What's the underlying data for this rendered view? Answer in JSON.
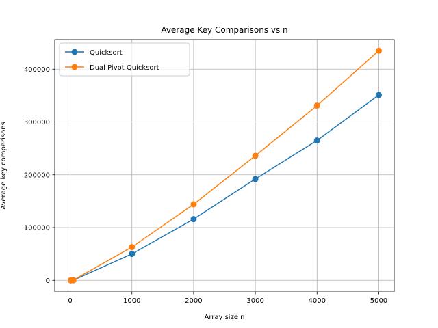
{
  "chart_data": {
    "type": "line",
    "title": "Average Key Comparisons vs n",
    "xlabel": "Array size n",
    "ylabel": "Average key comparisons",
    "xlim": [
      -250,
      5250
    ],
    "ylim": [
      -21700,
      456000
    ],
    "xticks": [
      0,
      1000,
      2000,
      3000,
      4000,
      5000
    ],
    "yticks": [
      0,
      100000,
      200000,
      300000,
      400000
    ],
    "x": [
      10,
      50,
      1000,
      2000,
      3000,
      4000,
      5000
    ],
    "series": [
      {
        "name": "Quicksort",
        "color": "#1f77b4",
        "marker": "circle",
        "values": [
          25,
          260,
          50000,
          116000,
          192000,
          265000,
          351000
        ]
      },
      {
        "name": "Dual Pivot Quicksort",
        "color": "#ff7f0e",
        "marker": "circle",
        "values": [
          30,
          300,
          63000,
          144000,
          236000,
          331000,
          435000
        ]
      }
    ],
    "grid": true,
    "legend": "top-left"
  }
}
